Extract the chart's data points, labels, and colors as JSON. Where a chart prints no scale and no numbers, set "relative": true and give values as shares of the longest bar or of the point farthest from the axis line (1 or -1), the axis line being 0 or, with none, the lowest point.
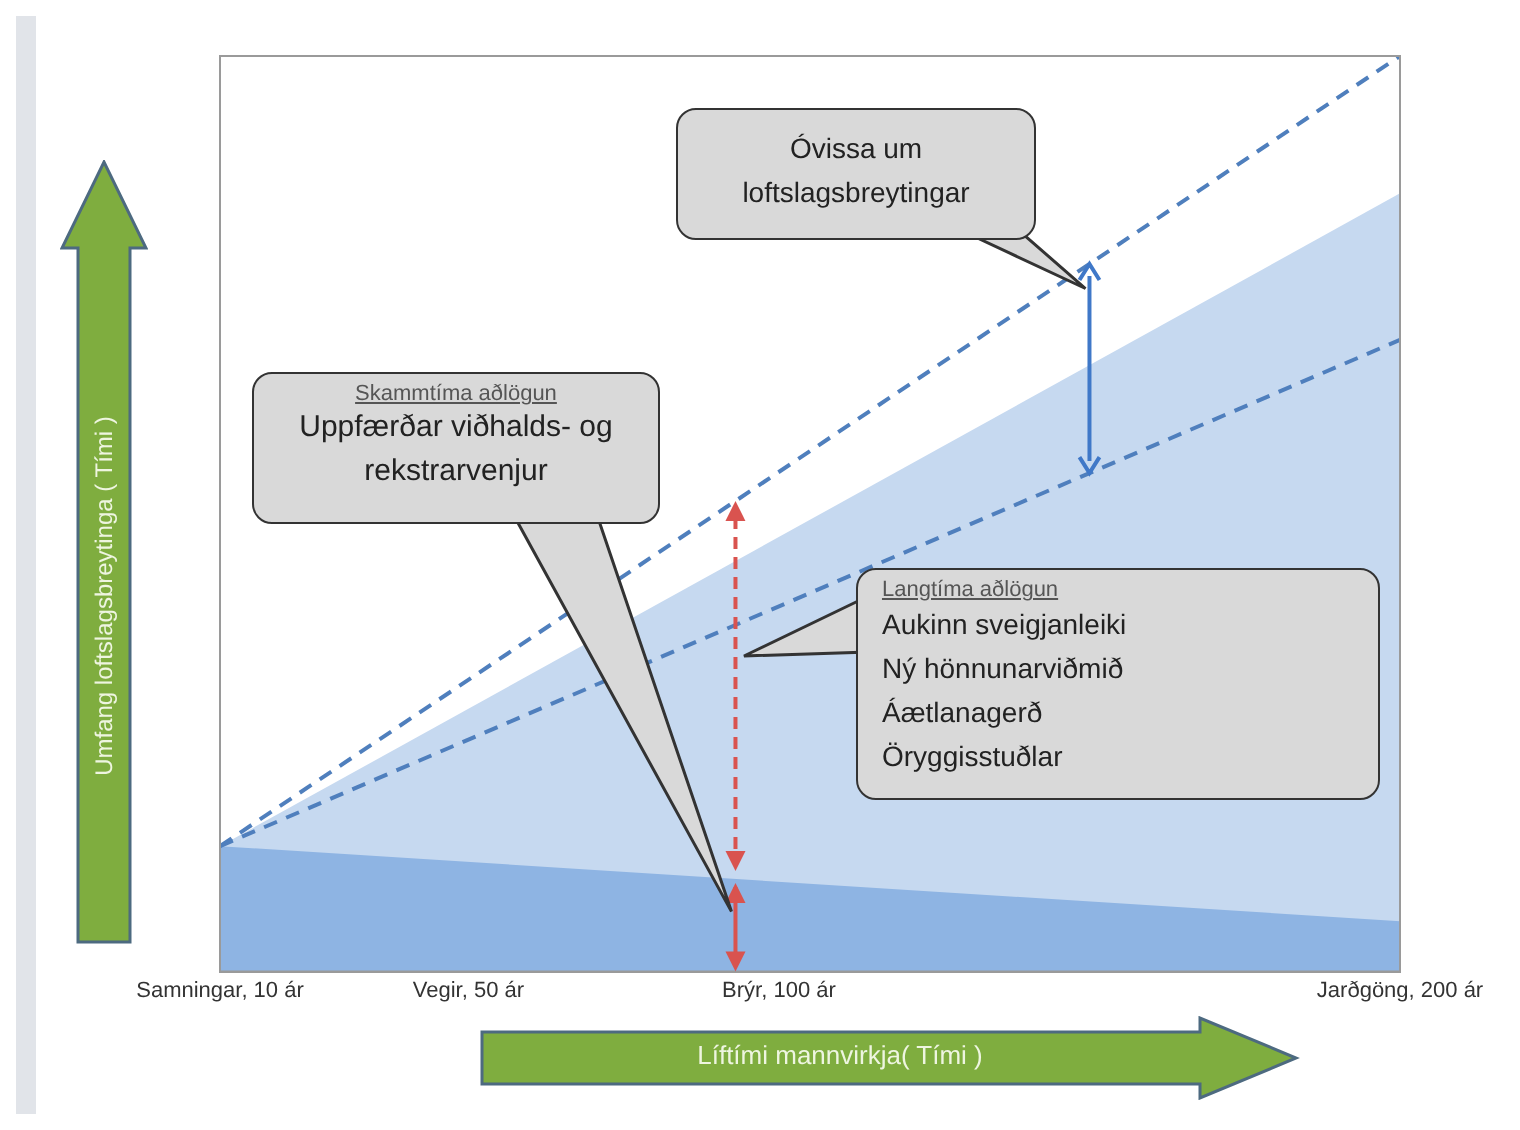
{
  "chart_data": {
    "type": "area",
    "relative": true,
    "xlabel": "Líftími mannvirkja( Tími )",
    "ylabel": "Umfang loftslagsbreytinga ( Tími )",
    "x": [
      10,
      200
    ],
    "xlim": [
      10,
      200
    ],
    "xticks": [
      {
        "value": 10,
        "label": "Samningar, 10 ár"
      },
      {
        "value": 50,
        "label": "Vegir, 50 ár"
      },
      {
        "value": 100,
        "label": "Brýr, 100 ár"
      },
      {
        "value": 200,
        "label": "Jarðgöng, 200 ár"
      }
    ],
    "series": [
      {
        "color": "#c6d9f0",
        "values": [
          0.137,
          0.85
        ]
      },
      {
        "color": "#8eb4e3",
        "values": [
          0.137,
          0.055
        ]
      },
      {
        "type": "line",
        "line_style": "dashed",
        "color": "#4f7fbd",
        "values": [
          0.137,
          1
        ]
      },
      {
        "type": "line",
        "line_style": "dashed",
        "color": "#4f7fbd",
        "values": [
          0.137,
          0.69
        ]
      }
    ],
    "marker": "none",
    "legend": false,
    "grid": false,
    "annotations": [
      "Óvissa um loftslagsbreytingar",
      "Skammtíma aðlögun",
      "Uppfærðar viðhalds- og rekstrarvenjur",
      "Langtíma aðlögun",
      "Aukinn sveigjanleiki\nNý hönnunarviðmið\nÁætlanagerð\nÖryggisstuðlar"
    ]
  }
}
